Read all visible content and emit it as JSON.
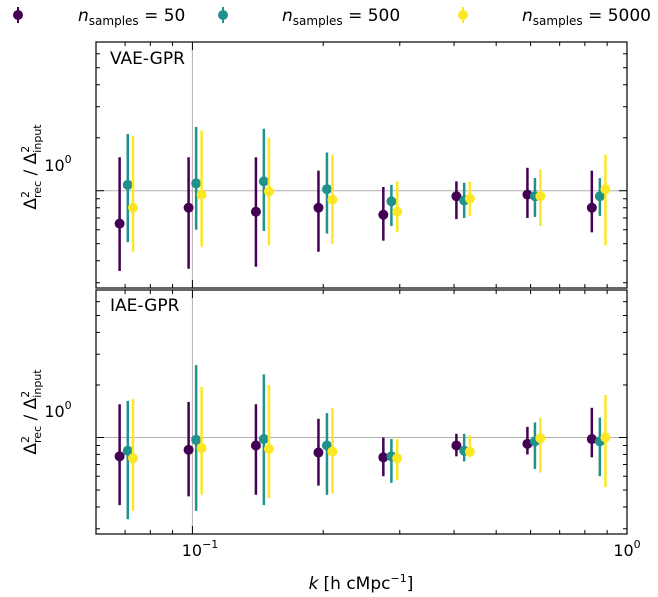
{
  "legend": [
    {
      "prefix": "n",
      "sub": "samples",
      "suffix": " = 50",
      "color": "#440154"
    },
    {
      "prefix": "n",
      "sub": "samples",
      "suffix": " = 500",
      "color": "#21918c"
    },
    {
      "prefix": "n",
      "sub": "samples",
      "suffix": " = 5000",
      "color": "#fde725"
    }
  ],
  "xlabel": {
    "k": "k",
    "unit": "[h cMpc",
    "exp": "−1",
    "close": "]"
  },
  "ylabel": {
    "delta": "Δ",
    "sup": "2",
    "sub1": "rec",
    "slash": " / ",
    "sub2": "input"
  },
  "xticks": [
    {
      "value": 0.1,
      "base": "10",
      "exp": "−1"
    },
    {
      "value": 1,
      "base": "10",
      "exp": "0"
    }
  ],
  "ytick_label": {
    "base": "10",
    "exp": "0"
  },
  "chart_data": [
    {
      "type": "scatter",
      "title": "VAE-GPR",
      "xscale": "log",
      "yscale": "log",
      "xlim": [
        0.06,
        1.0
      ],
      "ylim": [
        0.28,
        7.0
      ],
      "grid": true,
      "series": [
        {
          "name": "n_samples = 50",
          "color": "#440154",
          "x": [
            0.068,
            0.098,
            0.14,
            0.195,
            0.275,
            0.405,
            0.59,
            0.83
          ],
          "y": [
            0.65,
            0.8,
            0.76,
            0.8,
            0.73,
            0.93,
            0.95,
            0.8
          ],
          "yerr_low": [
            0.35,
            0.36,
            0.37,
            0.45,
            0.52,
            0.69,
            0.7,
            0.58
          ],
          "yerr_high": [
            1.55,
            1.55,
            1.55,
            1.3,
            1.05,
            1.13,
            1.35,
            1.3
          ]
        },
        {
          "name": "n_samples = 500",
          "color": "#21918c",
          "x": [
            0.071,
            0.102,
            0.146,
            0.204,
            0.287,
            0.422,
            0.614,
            0.866
          ],
          "y": [
            1.08,
            1.1,
            1.13,
            1.02,
            0.87,
            0.88,
            0.93,
            0.93
          ],
          "yerr_low": [
            0.51,
            0.6,
            0.59,
            0.57,
            0.63,
            0.7,
            0.71,
            0.72
          ],
          "yerr_high": [
            2.1,
            2.3,
            2.25,
            1.65,
            1.08,
            1.11,
            1.18,
            1.18
          ]
        },
        {
          "name": "n_samples = 5000",
          "color": "#fde725",
          "x": [
            0.073,
            0.105,
            0.15,
            0.21,
            0.296,
            0.435,
            0.632,
            0.892
          ],
          "y": [
            0.8,
            0.95,
            0.99,
            0.89,
            0.76,
            0.9,
            0.93,
            1.02
          ],
          "yerr_low": [
            0.45,
            0.48,
            0.49,
            0.5,
            0.58,
            0.72,
            0.63,
            0.49
          ],
          "yerr_high": [
            2.05,
            2.2,
            2.0,
            1.6,
            1.13,
            1.13,
            1.32,
            1.6
          ]
        }
      ]
    },
    {
      "type": "scatter",
      "title": "IAE-GPR",
      "xscale": "log",
      "yscale": "log",
      "xlim": [
        0.06,
        1.0
      ],
      "ylim": [
        0.28,
        7.0
      ],
      "grid": true,
      "series": [
        {
          "name": "n_samples = 50",
          "color": "#440154",
          "x": [
            0.068,
            0.098,
            0.14,
            0.195,
            0.275,
            0.405,
            0.59,
            0.83
          ],
          "y": [
            0.78,
            0.85,
            0.9,
            0.82,
            0.77,
            0.9,
            0.92,
            0.98
          ],
          "yerr_low": [
            0.41,
            0.46,
            0.47,
            0.53,
            0.6,
            0.78,
            0.8,
            0.77
          ],
          "yerr_high": [
            1.55,
            1.6,
            1.55,
            1.28,
            1.0,
            1.05,
            1.15,
            1.48
          ]
        },
        {
          "name": "n_samples = 500",
          "color": "#21918c",
          "x": [
            0.071,
            0.102,
            0.146,
            0.204,
            0.287,
            0.422,
            0.614,
            0.866
          ],
          "y": [
            0.84,
            0.97,
            0.98,
            0.9,
            0.78,
            0.84,
            0.95,
            0.95
          ],
          "yerr_low": [
            0.34,
            0.38,
            0.41,
            0.47,
            0.55,
            0.73,
            0.66,
            0.6
          ],
          "yerr_high": [
            1.62,
            2.6,
            2.3,
            1.38,
            0.98,
            1.05,
            1.22,
            1.3
          ]
        },
        {
          "name": "n_samples = 5000",
          "color": "#fde725",
          "x": [
            0.073,
            0.105,
            0.15,
            0.21,
            0.296,
            0.435,
            0.632,
            0.892
          ],
          "y": [
            0.76,
            0.87,
            0.86,
            0.83,
            0.76,
            0.83,
            0.99,
            1.0
          ],
          "yerr_low": [
            0.38,
            0.47,
            0.45,
            0.48,
            0.57,
            0.77,
            0.63,
            0.52
          ],
          "yerr_high": [
            1.66,
            1.95,
            2.0,
            1.48,
            0.98,
            1.03,
            1.3,
            1.75
          ]
        }
      ]
    }
  ]
}
